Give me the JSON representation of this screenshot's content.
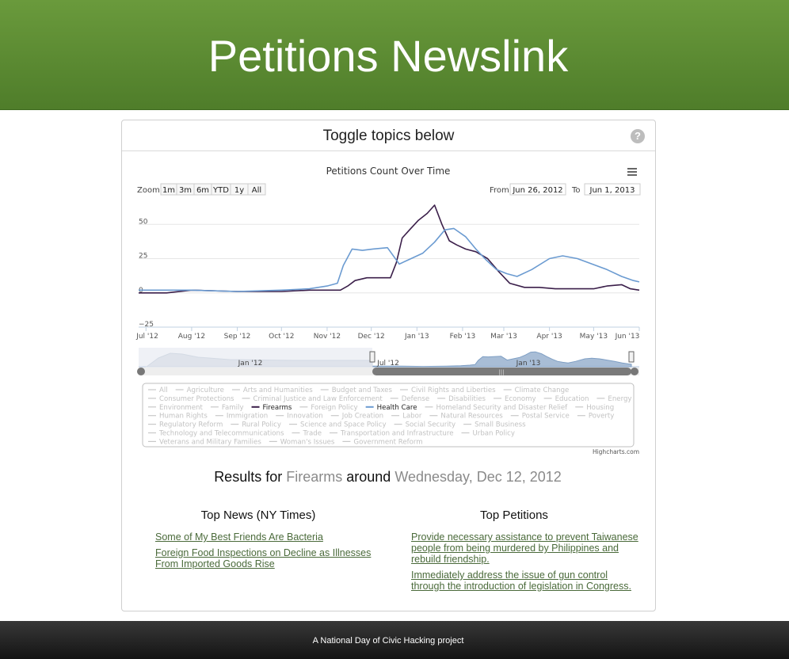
{
  "header": {
    "title": "Petitions Newslink"
  },
  "panel": {
    "title": "Toggle topics below",
    "help_icon": "?"
  },
  "chart_data": {
    "type": "line",
    "title": "Petitions Count Over Time",
    "xlabel": "",
    "ylabel": "",
    "zoom_label": "Zoom",
    "zoom_buttons": [
      "1m",
      "3m",
      "6m",
      "YTD",
      "1y",
      "All"
    ],
    "range_from_label": "From",
    "range_from": "Jun 26, 2012",
    "range_to_label": "To",
    "range_to": "Jun 1, 2013",
    "menu_icon": "hamburger-menu-icon",
    "ylim": [
      -25,
      75
    ],
    "y_ticks": [
      -25,
      0,
      25,
      50
    ],
    "x_ticks": [
      "Jul '12",
      "Aug '12",
      "Sep '12",
      "Oct '12",
      "Nov '12",
      "Dec '12",
      "Jan '13",
      "Feb '13",
      "Mar '13",
      "Apr '13",
      "May '13",
      "Jun '13"
    ],
    "x_tick_dates": [
      "2012-07-01",
      "2012-08-01",
      "2012-09-01",
      "2012-10-01",
      "2012-11-01",
      "2012-12-01",
      "2013-01-01",
      "2013-02-01",
      "2013-03-01",
      "2013-04-01",
      "2013-05-01",
      "2013-06-01"
    ],
    "series": [
      {
        "name": "Firearms",
        "color": "#3b1f4a",
        "x": [
          "2012-06-26",
          "2012-07-15",
          "2012-08-01",
          "2012-09-01",
          "2012-10-01",
          "2012-10-20",
          "2012-11-10",
          "2012-11-15",
          "2012-11-20",
          "2012-11-28",
          "2012-12-05",
          "2012-12-14",
          "2012-12-18",
          "2012-12-22",
          "2012-12-27",
          "2013-01-02",
          "2013-01-08",
          "2013-01-13",
          "2013-01-18",
          "2013-01-23",
          "2013-01-28",
          "2013-02-03",
          "2013-02-10",
          "2013-02-18",
          "2013-02-26",
          "2013-03-05",
          "2013-03-15",
          "2013-03-25",
          "2013-04-05",
          "2013-04-20",
          "2013-05-01",
          "2013-05-10",
          "2013-05-20",
          "2013-05-26",
          "2013-06-01"
        ],
        "y": [
          0,
          0,
          2,
          1,
          1,
          2,
          2,
          5,
          9,
          11,
          11,
          11,
          22,
          40,
          46,
          53,
          58,
          64,
          50,
          38,
          35,
          32,
          30,
          25,
          15,
          7,
          4,
          4,
          3,
          3,
          3,
          5,
          6,
          3,
          2
        ]
      },
      {
        "name": "Health Care",
        "color": "#6b9bd1",
        "x": [
          "2012-06-26",
          "2012-07-15",
          "2012-08-01",
          "2012-09-01",
          "2012-10-01",
          "2012-10-20",
          "2012-11-01",
          "2012-11-08",
          "2012-11-12",
          "2012-11-18",
          "2012-11-25",
          "2012-12-02",
          "2012-12-12",
          "2012-12-20",
          "2012-12-28",
          "2013-01-05",
          "2013-01-13",
          "2013-01-20",
          "2013-01-26",
          "2013-02-03",
          "2013-02-10",
          "2013-02-17",
          "2013-02-24",
          "2013-03-03",
          "2013-03-10",
          "2013-03-20",
          "2013-04-01",
          "2013-04-10",
          "2013-04-20",
          "2013-04-30",
          "2013-05-10",
          "2013-05-20",
          "2013-05-28",
          "2013-06-01"
        ],
        "y": [
          2,
          2,
          2,
          1,
          2,
          3,
          5,
          7,
          20,
          32,
          31,
          32,
          33,
          21,
          25,
          29,
          37,
          46,
          47,
          41,
          32,
          24,
          17,
          14,
          12,
          17,
          25,
          27,
          25,
          21,
          17,
          12,
          9,
          8
        ]
      }
    ],
    "navigator": {
      "tick_labels": [
        "Jan '12",
        "Jul '12",
        "Jan '13"
      ],
      "grip_icon": "scrollbar-grip-icon"
    },
    "topics": [
      {
        "label": "All",
        "active": false
      },
      {
        "label": "Agriculture",
        "active": false
      },
      {
        "label": "Arts and Humanities",
        "active": false
      },
      {
        "label": "Budget and Taxes",
        "active": false
      },
      {
        "label": "Civil Rights and Liberties",
        "active": false
      },
      {
        "label": "Climate Change",
        "active": false
      },
      {
        "label": "Consumer Protections",
        "active": false
      },
      {
        "label": "Criminal Justice and Law Enforcement",
        "active": false
      },
      {
        "label": "Defense",
        "active": false
      },
      {
        "label": "Disabilities",
        "active": false
      },
      {
        "label": "Economy",
        "active": false
      },
      {
        "label": "Education",
        "active": false
      },
      {
        "label": "Energy",
        "active": false
      },
      {
        "label": "Environment",
        "active": false
      },
      {
        "label": "Family",
        "active": false
      },
      {
        "label": "Firearms",
        "active": true,
        "color": "#3b1f4a"
      },
      {
        "label": "Foreign Policy",
        "active": false
      },
      {
        "label": "Health Care",
        "active": true,
        "color": "#6b9bd1"
      },
      {
        "label": "Homeland Security and Disaster Relief",
        "active": false
      },
      {
        "label": "Housing",
        "active": false
      },
      {
        "label": "Human Rights",
        "active": false
      },
      {
        "label": "Immigration",
        "active": false
      },
      {
        "label": "Innovation",
        "active": false
      },
      {
        "label": "Job Creation",
        "active": false
      },
      {
        "label": "Labor",
        "active": false
      },
      {
        "label": "Natural Resources",
        "active": false
      },
      {
        "label": "Postal Service",
        "active": false
      },
      {
        "label": "Poverty",
        "active": false
      },
      {
        "label": "Regulatory Reform",
        "active": false
      },
      {
        "label": "Rural Policy",
        "active": false
      },
      {
        "label": "Science and Space Policy",
        "active": false
      },
      {
        "label": "Social Security",
        "active": false
      },
      {
        "label": "Small Business",
        "active": false
      },
      {
        "label": "Technology and Telecommunications",
        "active": false
      },
      {
        "label": "Trade",
        "active": false
      },
      {
        "label": "Transportation and Infrastructure",
        "active": false
      },
      {
        "label": "Urban Policy",
        "active": false
      },
      {
        "label": "Veterans and Military Families",
        "active": false
      },
      {
        "label": "Woman's Issues",
        "active": false
      },
      {
        "label": "Government Reform",
        "active": false
      }
    ],
    "credit": "Highcharts.com"
  },
  "results": {
    "prefix": "Results for",
    "topic": "Firearms",
    "middle": "around",
    "date": "Wednesday, Dec 12, 2012"
  },
  "news": {
    "title": "Top News (NY Times)",
    "items": [
      "Some of My Best Friends Are Bacteria",
      "Foreign Food Inspections on Decline as Illnesses From Imported Goods Rise"
    ]
  },
  "petitions": {
    "title": "Top Petitions",
    "items": [
      "Provide necessary assistance to prevent Taiwanese people from being murdered by Philippines and rebuild friendship.",
      "Immediately address the issue of gun control through the introduction of legislation in Congress."
    ]
  },
  "footer": {
    "text": "A National Day of Civic Hacking project"
  }
}
